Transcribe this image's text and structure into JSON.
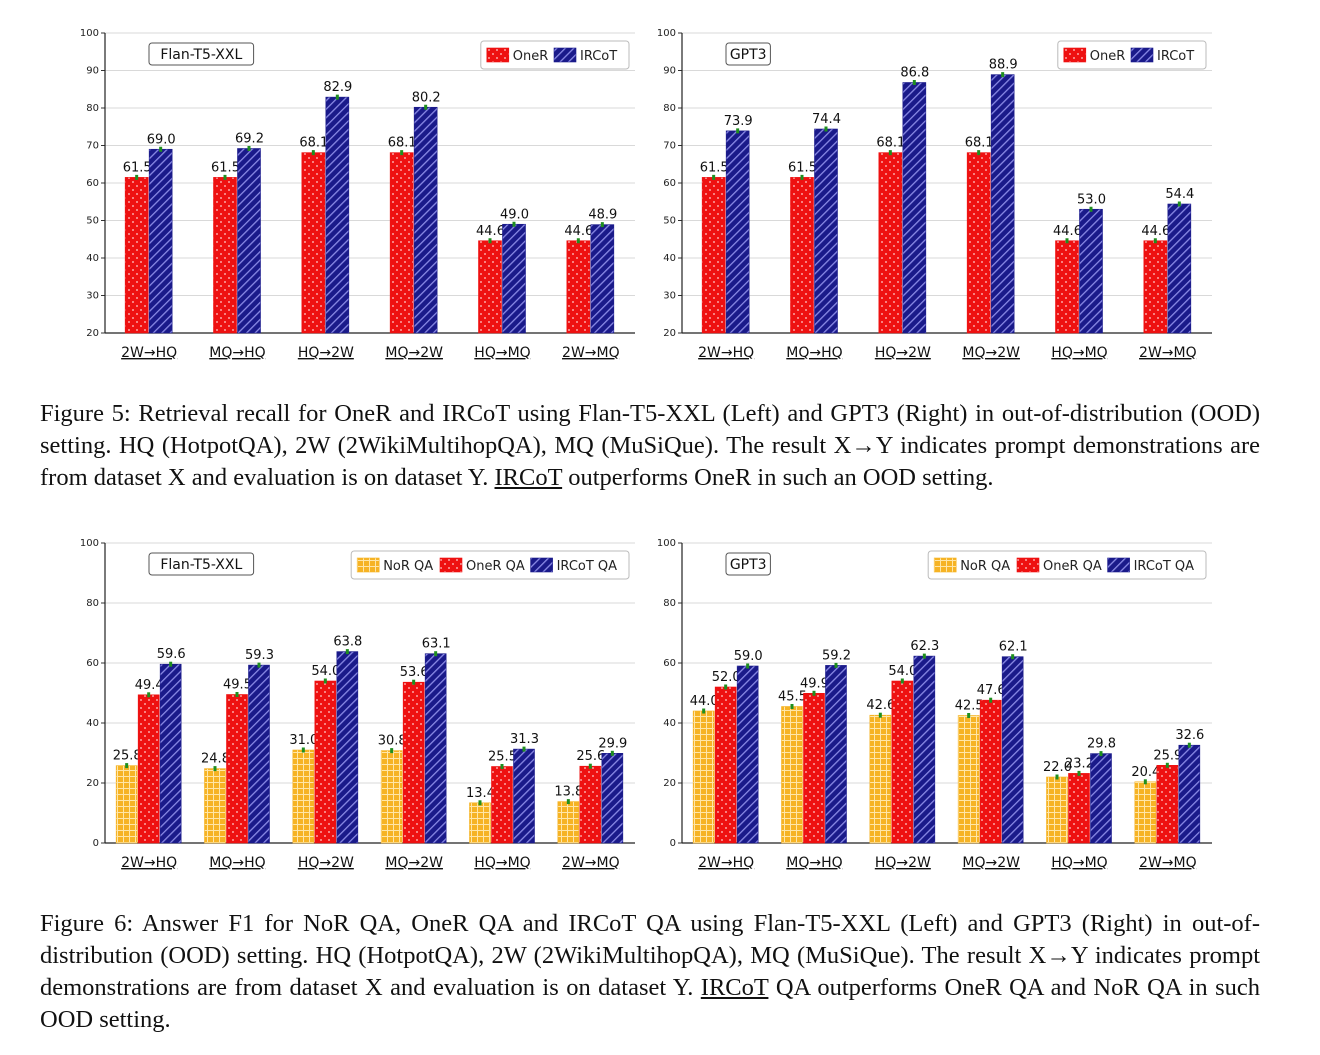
{
  "figure5": {
    "caption": {
      "before": "Figure 5: Retrieval recall for OneR and IRCoT using Flan-T5-XXL (Left) and GPT3 (Right) in out-of-distribution (OOD) setting. HQ (HotpotQA), 2W (2WikiMultihopQA), MQ (MuSiQue). The result X→Y indicates prompt demonstrations are from dataset X and evaluation is on dataset Y.",
      "underlined": "IRCoT",
      "after": " outperforms OneR in such an OOD setting."
    }
  },
  "figure6": {
    "caption": {
      "before": "Figure 6: Answer F1 for NoR QA, OneR QA and IRCoT QA using Flan-T5-XXL (Left) and GPT3 (Right) in out-of-distribution (OOD) setting. HQ (HotpotQA), 2W (2WikiMultihopQA), MQ (MuSiQue). The result X→Y indicates prompt demonstrations are from dataset X and evaluation is on dataset Y.",
      "underlined": "IRCoT",
      "after": " QA outperforms OneR QA and NoR QA in such OOD setting."
    }
  },
  "colors": {
    "nor": "#f6b324",
    "oner": "#ee1111",
    "ircot": "#1a1a8a",
    "err": "#1f8f1f",
    "grid": "#d9d9d9"
  },
  "chart_data": [
    {
      "type": "bar",
      "title": "Flan-T5-XXL",
      "categories": [
        "2W→HQ",
        "MQ→HQ",
        "HQ→2W",
        "MQ→2W",
        "HQ→MQ",
        "2W→MQ"
      ],
      "series": [
        {
          "name": "OneR",
          "key": "oner",
          "values": [
            61.5,
            61.5,
            68.1,
            68.1,
            44.6,
            44.6
          ],
          "labels": [
            "61.5",
            "61.5",
            "68.1",
            "68.1",
            "44.6",
            "44.6"
          ]
        },
        {
          "name": "IRCoT",
          "key": "ircot",
          "values": [
            69.0,
            69.2,
            82.9,
            80.2,
            49.0,
            48.9
          ],
          "labels": [
            "69.0",
            "69.2",
            "82.9",
            "80.2",
            "49.0",
            "48.9"
          ]
        }
      ],
      "ylim": [
        20,
        100
      ],
      "yticks": [
        20,
        30,
        40,
        50,
        60,
        70,
        80,
        90,
        100
      ],
      "legend": "top-right",
      "grid": true
    },
    {
      "type": "bar",
      "title": "GPT3",
      "categories": [
        "2W→HQ",
        "MQ→HQ",
        "HQ→2W",
        "MQ→2W",
        "HQ→MQ",
        "2W→MQ"
      ],
      "series": [
        {
          "name": "OneR",
          "key": "oner",
          "values": [
            61.5,
            61.5,
            68.1,
            68.1,
            44.6,
            44.6
          ],
          "labels": [
            "61.5",
            "61.5",
            "68.1",
            "68.1",
            "44.6",
            "44.6"
          ]
        },
        {
          "name": "IRCoT",
          "key": "ircot",
          "values": [
            73.9,
            74.4,
            86.8,
            88.9,
            53.0,
            54.4
          ],
          "labels": [
            "73.9",
            "74.4",
            "86.8",
            "88.9",
            "53.0",
            "54.4"
          ]
        }
      ],
      "ylim": [
        20,
        100
      ],
      "yticks": [
        20,
        30,
        40,
        50,
        60,
        70,
        80,
        90,
        100
      ],
      "legend": "top-right",
      "grid": true
    },
    {
      "type": "bar",
      "title": "Flan-T5-XXL",
      "categories": [
        "2W→HQ",
        "MQ→HQ",
        "HQ→2W",
        "MQ→2W",
        "HQ→MQ",
        "2W→MQ"
      ],
      "series": [
        {
          "name": "NoR QA",
          "key": "nor",
          "values": [
            25.8,
            24.8,
            31.0,
            30.8,
            13.4,
            13.8
          ],
          "labels": [
            "25.8",
            "24.8",
            "31.0",
            "30.8",
            "13.4",
            "13.8"
          ]
        },
        {
          "name": "OneR QA",
          "key": "oner",
          "values": [
            49.4,
            49.5,
            54.0,
            53.6,
            25.5,
            25.6
          ],
          "labels": [
            "49.4",
            "49.5",
            "54.0",
            "53.6",
            "25.5",
            "25.6"
          ]
        },
        {
          "name": "IRCoT QA",
          "key": "ircot",
          "values": [
            59.6,
            59.3,
            63.8,
            63.1,
            31.3,
            29.9
          ],
          "labels": [
            "59.6",
            "59.3",
            "63.8",
            "63.1",
            "31.3",
            "29.9"
          ]
        }
      ],
      "ylim": [
        0,
        100
      ],
      "yticks": [
        0,
        20,
        40,
        60,
        80,
        100
      ],
      "legend": "top-right",
      "grid": true
    },
    {
      "type": "bar",
      "title": "GPT3",
      "categories": [
        "2W→HQ",
        "MQ→HQ",
        "HQ→2W",
        "MQ→2W",
        "HQ→MQ",
        "2W→MQ"
      ],
      "series": [
        {
          "name": "NoR QA",
          "key": "nor",
          "values": [
            44.0,
            45.5,
            42.6,
            42.5,
            22.0,
            20.4
          ],
          "labels": [
            "44.0",
            "45.5",
            "42.6",
            "42.5",
            "22.0",
            "20.4"
          ]
        },
        {
          "name": "OneR QA",
          "key": "oner",
          "values": [
            52.0,
            49.9,
            54.0,
            47.6,
            23.2,
            25.9
          ],
          "labels": [
            "52.0",
            "49.9",
            "54.0",
            "47.6",
            "23.2",
            "25.9"
          ]
        },
        {
          "name": "IRCoT QA",
          "key": "ircot",
          "values": [
            59.0,
            59.2,
            62.3,
            62.1,
            29.8,
            32.6
          ],
          "labels": [
            "59.0",
            "59.2",
            "62.3",
            "62.1",
            "29.8",
            "32.6"
          ]
        }
      ],
      "ylim": [
        0,
        100
      ],
      "yticks": [
        0,
        20,
        40,
        60,
        80,
        100
      ],
      "legend": "top-right",
      "grid": true
    }
  ]
}
